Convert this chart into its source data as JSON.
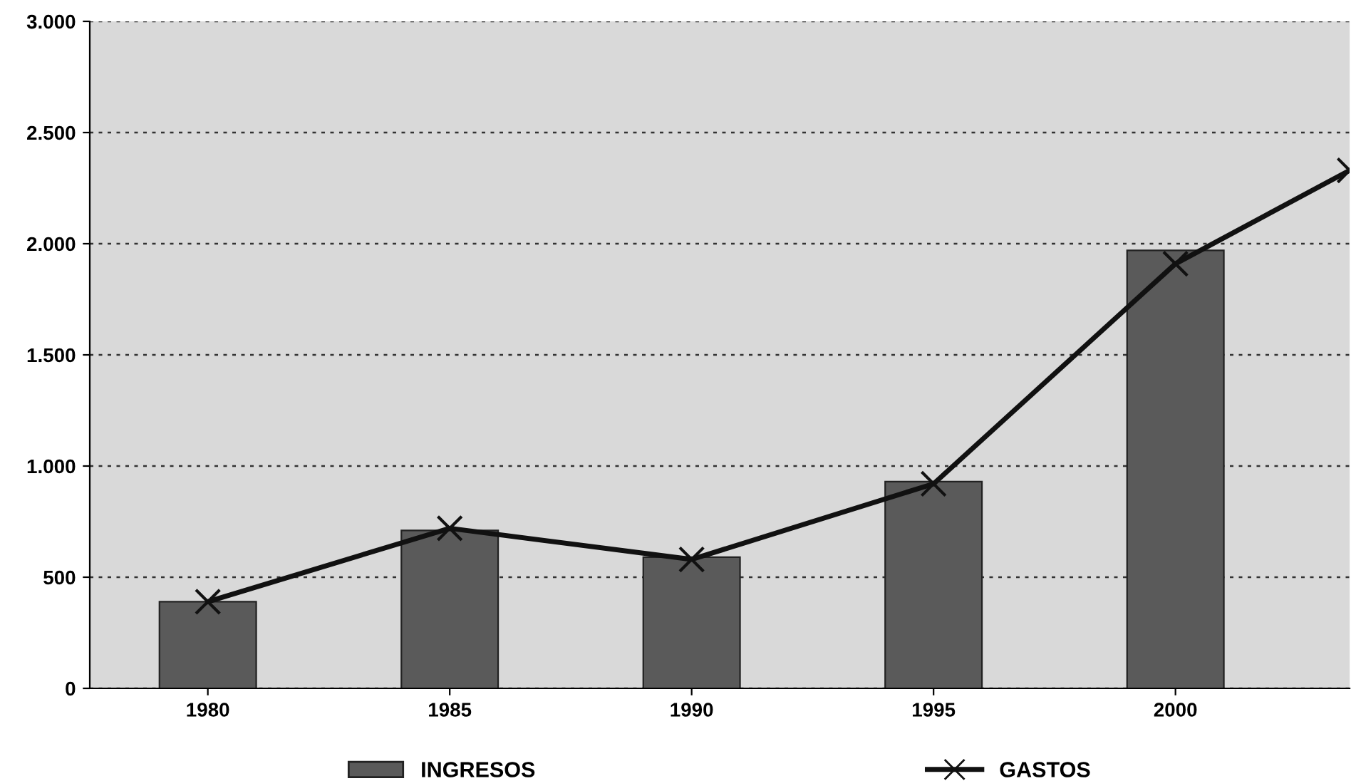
{
  "chart_data": {
    "type": "bar",
    "x": [
      1980,
      1985,
      1990,
      1995,
      2000
    ],
    "xlim": [
      1977.56,
      2003.6
    ],
    "xticks": [
      1980,
      1985,
      1990,
      1995,
      2000
    ],
    "ylim": [
      0,
      3000
    ],
    "yticks": [
      {
        "value": 0,
        "label": "0"
      },
      {
        "value": 500,
        "label": "500"
      },
      {
        "value": 1000,
        "label": "1.000"
      },
      {
        "value": 1500,
        "label": "1.500"
      },
      {
        "value": 2000,
        "label": "2.000"
      },
      {
        "value": 2500,
        "label": "2.500"
      },
      {
        "value": 3000,
        "label": "3.000"
      }
    ],
    "series": [
      {
        "name": "INGRESOS",
        "color": "#5a5a5a",
        "values": [
          390,
          710,
          590,
          930,
          1970
        ]
      },
      {
        "name": "GASTOS",
        "type": "line",
        "color": "#111111",
        "marker": "cross",
        "line_style": "solid",
        "x": [
          1980,
          1985,
          1990,
          1995,
          2000,
          2003.6
        ],
        "values": [
          390,
          720,
          580,
          920,
          1910,
          2330
        ]
      }
    ],
    "grid": "y",
    "legend": "bottom"
  }
}
